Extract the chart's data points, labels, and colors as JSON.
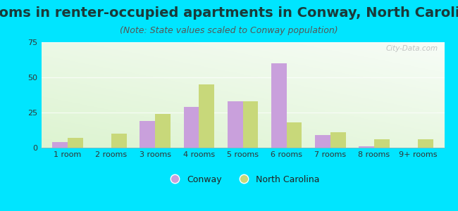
{
  "title": "Rooms in renter-occupied apartments in Conway, North Carolina",
  "subtitle": "(Note: State values scaled to Conway population)",
  "categories": [
    "1 room",
    "2 rooms",
    "3 rooms",
    "4 rooms",
    "5 rooms",
    "6 rooms",
    "7 rooms",
    "8 rooms",
    "9+ rooms"
  ],
  "conway_values": [
    4,
    0,
    19,
    29,
    33,
    60,
    9,
    1,
    0
  ],
  "nc_values": [
    7,
    10,
    24,
    45,
    33,
    18,
    11,
    6,
    6
  ],
  "conway_color": "#c9a0dc",
  "nc_color": "#c8d87a",
  "background_color": "#00e5ff",
  "ylim": [
    0,
    75
  ],
  "yticks": [
    0,
    25,
    50,
    75
  ],
  "title_fontsize": 14,
  "subtitle_fontsize": 9,
  "tick_fontsize": 8,
  "legend_fontsize": 9,
  "bar_width": 0.35,
  "watermark": "City-Data.com"
}
